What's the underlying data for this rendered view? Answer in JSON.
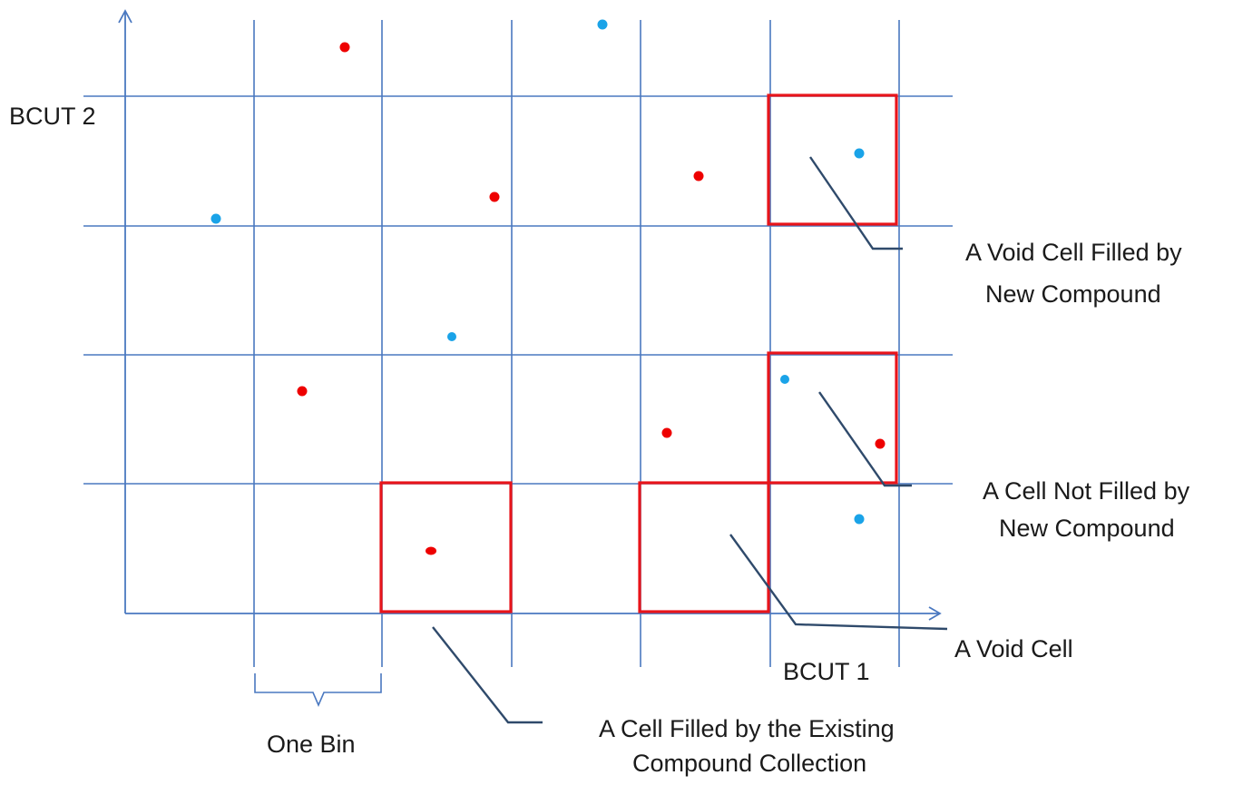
{
  "axes": {
    "x_label": "BCUT 1",
    "y_label": "BCUT 2"
  },
  "bin_label": "One Bin",
  "callouts": {
    "void_filled": [
      "A Void Cell Filled by",
      "New Compound"
    ],
    "not_filled": [
      "A Cell Not Filled by",
      "New Compound"
    ],
    "void": [
      "A Void Cell"
    ],
    "existing": [
      "A Cell Filled by the Existing",
      "Compound Collection"
    ]
  },
  "legend_colors": {
    "existing_compound": "#ee0000",
    "new_compound": "#1aa3e8",
    "grid": "#4a78c0",
    "highlight": "#e8141a",
    "leader": "#2f4a6b"
  }
}
